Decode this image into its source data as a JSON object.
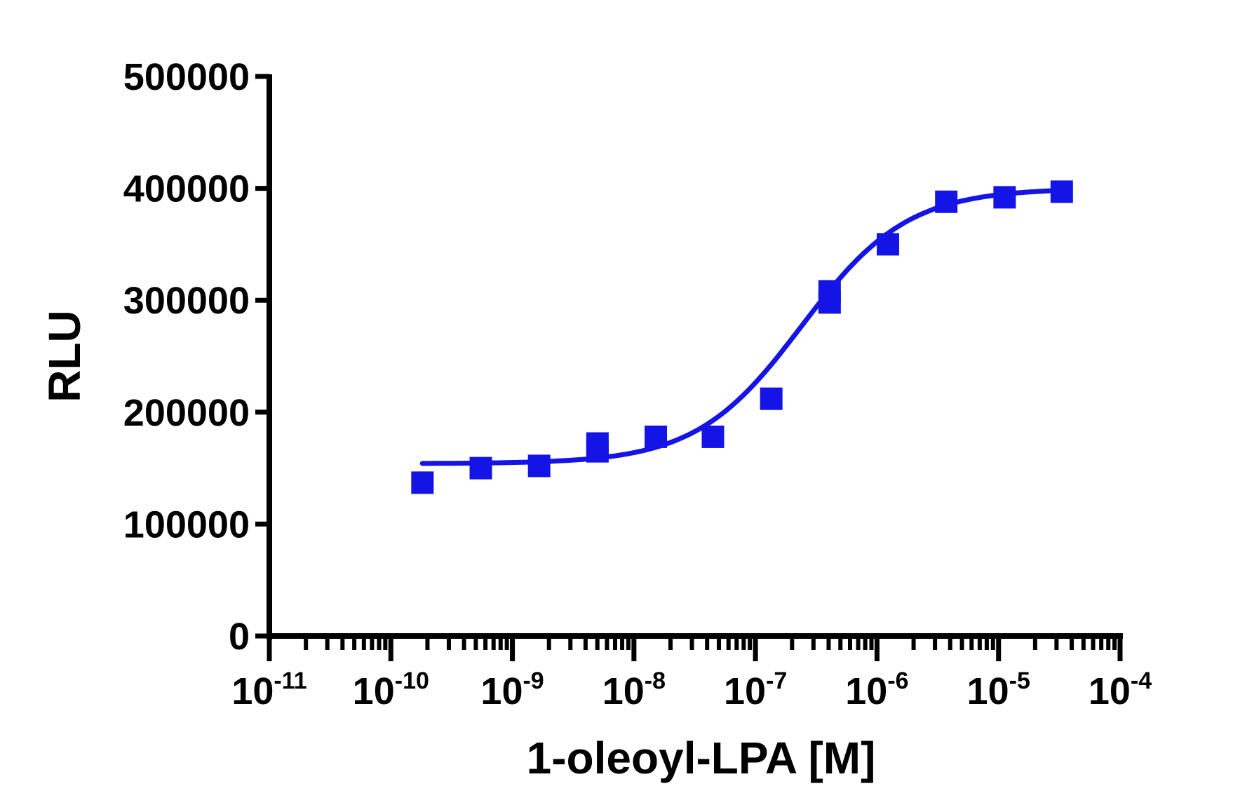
{
  "chart_data": {
    "type": "scatter",
    "title": "",
    "xlabel": "1-oleoyl-LPA [M]",
    "ylabel": "RLU",
    "xscale": "log10",
    "xlim_exponent": [
      -11,
      -4
    ],
    "ylim": [
      0,
      500000
    ],
    "yticks": [
      0,
      100000,
      200000,
      300000,
      400000,
      500000
    ],
    "ytick_labels": [
      "0",
      "100000",
      "200000",
      "300000",
      "400000",
      "500000"
    ],
    "xticks_exponent": [
      -11,
      -10,
      -9,
      -8,
      -7,
      -6,
      -5,
      -4
    ],
    "xtick_base": "10",
    "xtick_exponent_labels": [
      "-11",
      "-10",
      "-9",
      "-8",
      "-7",
      "-6",
      "-5",
      "-4"
    ],
    "grid": false,
    "legend": "none",
    "series": [
      {
        "name": "data",
        "marker": "square",
        "color": "#1414e6",
        "log10_x": [
          -9.74,
          -9.26,
          -8.78,
          -8.3,
          -8.3,
          -7.82,
          -7.35,
          -6.87,
          -6.39,
          -6.39,
          -5.91,
          -5.43,
          -4.95,
          -4.48
        ],
        "y": [
          137000,
          150000,
          152000,
          165000,
          172000,
          178000,
          178000,
          212000,
          298000,
          308000,
          350000,
          388000,
          392000,
          397000
        ]
      }
    ],
    "fit": {
      "model": "sigmoidal dose-response (4PL)",
      "color": "#1414e6",
      "bottom": 154000,
      "top": 400000,
      "log_ec50": -6.62,
      "hill_slope": 1.0,
      "log10_x_range": [
        -9.74,
        -4.48
      ]
    }
  }
}
